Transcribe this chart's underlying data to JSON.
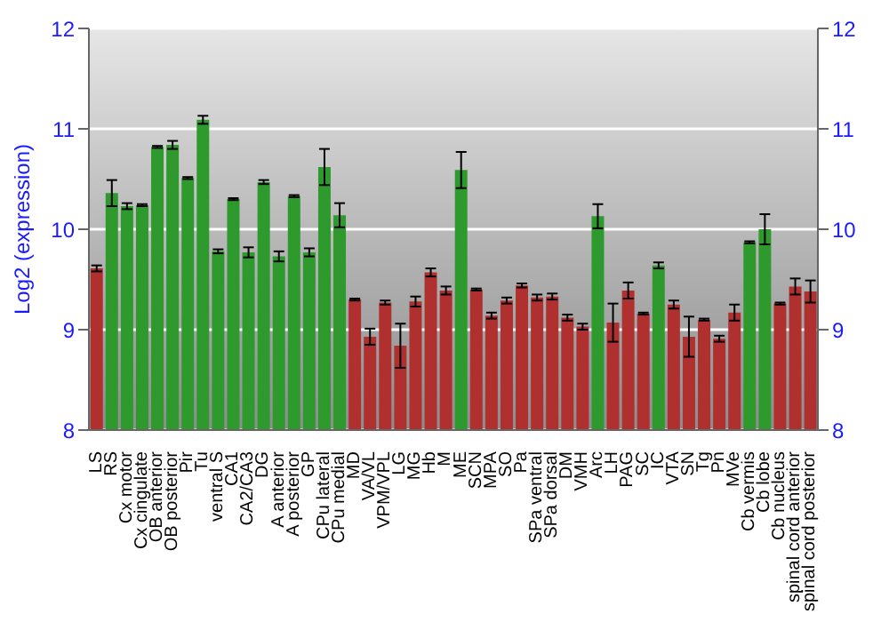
{
  "chart_data": {
    "type": "bar",
    "ylabel": "Log2 (expression)",
    "categories": [
      "LS",
      "RS",
      "Cx motor",
      "Cx cingulate",
      "OB anterior",
      "OB posterior",
      "Pir",
      "Tu",
      "ventral S",
      "CA1",
      "CA2/CA3",
      "DG",
      "A anterior",
      "A posterior",
      "GP",
      "CPu lateral",
      "CPu medial",
      "MD",
      "VA/VL",
      "VPM/VPL",
      "LG",
      "MG",
      "Hb",
      "M",
      "ME",
      "SCN",
      "MPA",
      "SO",
      "Pa",
      "SPa ventral",
      "SPa dorsal",
      "DM",
      "VMH",
      "Arc",
      "LH",
      "PAG",
      "SC",
      "IC",
      "VTA",
      "SN",
      "Tg",
      "Pn",
      "MVe",
      "Cb vermis",
      "Cb lobe",
      "Cb nucleus",
      "spinal cord anterior",
      "spinal cord posterior"
    ],
    "values": [
      9.61,
      10.36,
      10.23,
      10.24,
      10.82,
      10.84,
      10.51,
      11.09,
      9.78,
      10.3,
      9.77,
      10.47,
      9.73,
      10.33,
      9.77,
      10.62,
      10.14,
      9.3,
      8.93,
      9.27,
      8.84,
      9.28,
      9.57,
      9.39,
      10.59,
      9.4,
      9.14,
      9.29,
      9.44,
      9.32,
      9.33,
      9.12,
      9.03,
      10.13,
      9.07,
      9.39,
      9.16,
      9.64,
      9.25,
      8.93,
      9.1,
      8.91,
      9.17,
      9.87,
      10,
      9.26,
      9.43,
      9.38
    ],
    "errors": [
      0.03,
      0.13,
      0.03,
      0.01,
      0.01,
      0.04,
      0.01,
      0.04,
      0.02,
      0.01,
      0.05,
      0.02,
      0.05,
      0.01,
      0.04,
      0.18,
      0.12,
      0.01,
      0.08,
      0.02,
      0.22,
      0.05,
      0.04,
      0.04,
      0.18,
      0.01,
      0.03,
      0.03,
      0.02,
      0.03,
      0.03,
      0.03,
      0.03,
      0.12,
      0.19,
      0.08,
      0.01,
      0.03,
      0.04,
      0.2,
      0.01,
      0.03,
      0.08,
      0.01,
      0.15,
      0.01,
      0.08,
      0.11
    ],
    "colors": [
      "#b03030",
      "#2e9a2e",
      "#2e9a2e",
      "#2e9a2e",
      "#2e9a2e",
      "#2e9a2e",
      "#2e9a2e",
      "#2e9a2e",
      "#2e9a2e",
      "#2e9a2e",
      "#2e9a2e",
      "#2e9a2e",
      "#2e9a2e",
      "#2e9a2e",
      "#2e9a2e",
      "#2e9a2e",
      "#2e9a2e",
      "#b03030",
      "#b03030",
      "#b03030",
      "#b03030",
      "#b03030",
      "#b03030",
      "#b03030",
      "#2e9a2e",
      "#b03030",
      "#b03030",
      "#b03030",
      "#b03030",
      "#b03030",
      "#b03030",
      "#b03030",
      "#b03030",
      "#2e9a2e",
      "#b03030",
      "#b03030",
      "#b03030",
      "#2e9a2e",
      "#b03030",
      "#b03030",
      "#b03030",
      "#b03030",
      "#b03030",
      "#2e9a2e",
      "#2e9a2e",
      "#b03030",
      "#b03030",
      "#b03030"
    ],
    "ylim": [
      8,
      12
    ],
    "yticks": [
      8,
      9,
      10,
      11,
      12
    ],
    "y2lim": [
      8,
      12
    ],
    "y2ticks": [
      8,
      9,
      10,
      11,
      12
    ],
    "grid": "y"
  }
}
